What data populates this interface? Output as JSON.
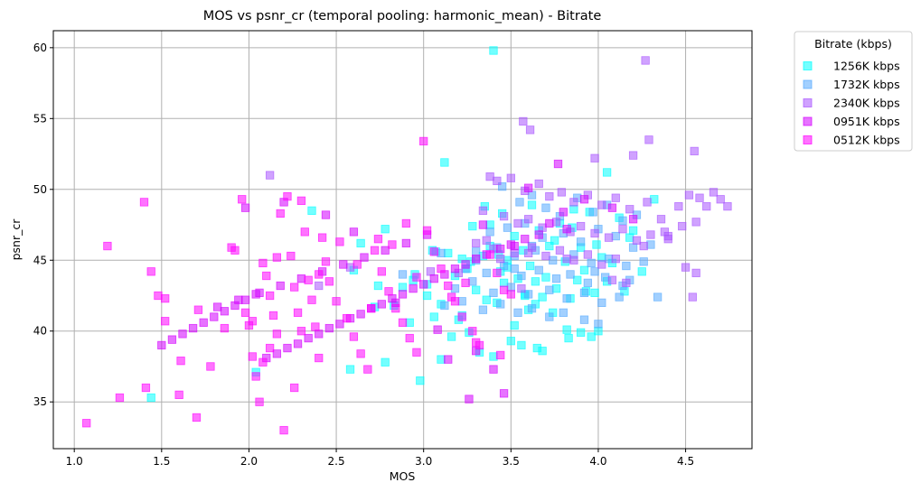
{
  "chart_data": {
    "type": "scatter",
    "title": "MOS vs psnr_cr (temporal pooling: harmonic_mean) - Bitrate",
    "xlabel": "MOS",
    "ylabel": "psnr_cr",
    "xlim": [
      0.88,
      4.88
    ],
    "ylim": [
      31.7,
      61.2
    ],
    "xticks": [
      1.0,
      1.5,
      2.0,
      2.5,
      3.0,
      3.5,
      4.0,
      4.5
    ],
    "xtick_labels": [
      "1.0",
      "1.5",
      "2.0",
      "2.5",
      "3.0",
      "3.5",
      "4.0",
      "4.5"
    ],
    "yticks": [
      35,
      40,
      45,
      50,
      55,
      60
    ],
    "ytick_labels": [
      "35",
      "40",
      "45",
      "50",
      "55",
      "60"
    ],
    "grid": true,
    "marker": "square",
    "legend": {
      "title": "Bitrate (kbps)",
      "placement": "outside-top-right"
    },
    "series": [
      {
        "name": "1256K kbps",
        "color": "#00ffff",
        "x": [
          3.4,
          3.12,
          3.35,
          3.45,
          3.62,
          3.85,
          4.05,
          4.12,
          3.38,
          3.78,
          3.52,
          3.95,
          3.66,
          3.28,
          3.72,
          3.99,
          4.18,
          2.78,
          2.64,
          3.05,
          3.9,
          4.02,
          3.57,
          3.14,
          3.22,
          3.34,
          3.48,
          3.81,
          4.08,
          3.61,
          3.25,
          3.44,
          2.95,
          3.18,
          3.7,
          3.88,
          4.25,
          3.54,
          3.64,
          3.46,
          3.02,
          2.88,
          3.3,
          3.76,
          3.93,
          3.58,
          3.68,
          3.84,
          4.15,
          3.98,
          3.36,
          3.42,
          3.1,
          2.83,
          2.72,
          3.6,
          3.74,
          3.06,
          3.2,
          2.92,
          3.52,
          3.82,
          3.26,
          3.16,
          3.5,
          3.9,
          3.96,
          4.0,
          3.56,
          3.65,
          3.32,
          3.4,
          3.1,
          2.98,
          2.78,
          2.58,
          2.36,
          3.58,
          4.32,
          3.86,
          4.2,
          3.75,
          3.38,
          3.07,
          3.27,
          3.43,
          3.48,
          3.92,
          2.94,
          2.74,
          3.02,
          4.05,
          3.22,
          3.64,
          1.44,
          2.04,
          3.68,
          3.83,
          2.6
        ],
        "y": [
          59.8,
          51.9,
          48.8,
          48.3,
          48.9,
          47.3,
          51.2,
          48.0,
          47.5,
          47.6,
          46.7,
          48.4,
          47.1,
          47.4,
          46.0,
          46.1,
          46.6,
          47.2,
          46.2,
          45.7,
          45.9,
          45.2,
          45.7,
          45.5,
          45.1,
          45.3,
          45.0,
          44.9,
          44.8,
          44.6,
          44.4,
          44.2,
          44.0,
          43.9,
          43.8,
          43.6,
          44.2,
          43.7,
          43.5,
          43.4,
          43.3,
          43.1,
          42.9,
          43.0,
          42.8,
          42.6,
          42.4,
          42.3,
          42.8,
          42.7,
          42.2,
          42.0,
          41.9,
          41.8,
          41.7,
          41.5,
          41.3,
          41.0,
          40.8,
          40.6,
          40.4,
          40.1,
          39.9,
          39.6,
          39.3,
          39.9,
          39.6,
          40.0,
          39.0,
          38.8,
          38.5,
          38.2,
          38.0,
          36.5,
          37.8,
          37.3,
          48.5,
          42.5,
          49.3,
          48.6,
          47.1,
          46.4,
          46.0,
          45.6,
          44.9,
          45.4,
          44.5,
          44.3,
          43.6,
          43.2,
          42.5,
          43.5,
          41.1,
          41.9,
          35.3,
          37.1,
          38.6,
          39.5,
          44.3
        ]
      },
      {
        "name": "1732K kbps",
        "color": "#55aaff",
        "x": [
          3.45,
          3.55,
          3.62,
          3.7,
          3.78,
          3.88,
          3.97,
          4.05,
          4.14,
          4.22,
          3.38,
          3.48,
          3.58,
          3.68,
          3.8,
          3.9,
          4.0,
          4.1,
          4.2,
          4.3,
          3.3,
          3.42,
          3.52,
          3.64,
          3.74,
          3.86,
          3.96,
          4.06,
          4.16,
          4.26,
          3.24,
          3.36,
          3.46,
          3.56,
          3.66,
          3.76,
          3.84,
          3.94,
          4.04,
          4.14,
          3.18,
          3.28,
          3.4,
          3.5,
          3.6,
          3.72,
          3.82,
          3.92,
          4.02,
          4.12,
          3.12,
          3.22,
          3.34,
          3.44,
          3.54,
          3.62,
          3.72,
          3.8,
          3.92,
          4.0,
          4.34,
          4.18,
          3.98,
          3.52,
          2.88,
          3.3,
          3.62,
          3.1
        ],
        "y": [
          50.2,
          49.1,
          49.6,
          48.7,
          48.1,
          49.4,
          48.4,
          48.9,
          47.8,
          48.2,
          47.0,
          47.3,
          47.6,
          46.6,
          46.9,
          46.3,
          47.2,
          46.7,
          45.9,
          46.1,
          45.6,
          45.9,
          45.3,
          45.7,
          45.0,
          45.4,
          44.8,
          45.1,
          44.6,
          44.9,
          44.4,
          44.1,
          44.6,
          43.9,
          44.3,
          43.7,
          44.0,
          43.4,
          43.8,
          43.2,
          43.0,
          43.5,
          42.7,
          43.1,
          42.6,
          42.9,
          42.3,
          42.7,
          42.0,
          42.4,
          41.8,
          42.1,
          41.5,
          41.9,
          41.3,
          41.6,
          41.0,
          41.3,
          40.8,
          40.5,
          42.4,
          43.6,
          44.2,
          44.4,
          44.0,
          45.0,
          46.0,
          45.5
        ]
      },
      {
        "name": "2340K kbps",
        "color": "#aa55ff",
        "x": [
          4.27,
          4.29,
          4.55,
          3.57,
          3.61,
          3.98,
          4.2,
          3.38,
          3.42,
          3.5,
          3.58,
          3.66,
          3.72,
          3.79,
          3.86,
          3.94,
          4.02,
          4.1,
          4.18,
          4.28,
          4.36,
          4.46,
          4.52,
          4.58,
          4.62,
          4.66,
          4.7,
          4.74,
          4.56,
          4.48,
          4.38,
          3.34,
          3.46,
          3.54,
          3.6,
          3.68,
          3.76,
          3.84,
          3.9,
          3.98,
          4.06,
          4.14,
          4.22,
          4.3,
          4.4,
          4.5,
          4.56,
          3.3,
          3.4,
          3.52,
          3.62,
          3.7,
          3.78,
          3.86,
          3.94,
          4.02,
          4.1,
          2.12,
          2.4,
          2.58,
          3.2,
          3.6,
          3.82,
          4.54,
          3.36,
          3.44,
          3.56,
          4.16,
          3.04,
          4.4,
          4.26,
          4.08
        ],
        "y": [
          59.1,
          53.5,
          52.7,
          54.8,
          54.2,
          52.2,
          52.4,
          50.9,
          50.6,
          50.8,
          49.9,
          50.4,
          49.5,
          49.8,
          49.1,
          49.6,
          48.9,
          49.4,
          48.6,
          49.1,
          47.9,
          48.8,
          49.6,
          49.4,
          48.8,
          49.8,
          49.3,
          48.8,
          47.7,
          47.4,
          47.0,
          48.5,
          48.1,
          47.6,
          47.9,
          47.3,
          47.7,
          47.0,
          47.4,
          46.9,
          46.6,
          47.2,
          46.4,
          46.8,
          46.5,
          44.5,
          44.1,
          46.2,
          45.8,
          45.5,
          45.9,
          45.3,
          45.7,
          45.0,
          45.4,
          44.7,
          45.1,
          51.0,
          43.2,
          44.5,
          44.1,
          45.5,
          45.1,
          42.4,
          46.4,
          45.1,
          43.0,
          43.4,
          44.2,
          46.7,
          46.0,
          43.6
        ]
      },
      {
        "name": "0951K kbps",
        "color": "#d400ff",
        "x": [
          3.77,
          3.92,
          4.08,
          4.2,
          3.72,
          3.82,
          3.66,
          3.58,
          3.5,
          3.44,
          3.36,
          3.3,
          3.24,
          3.18,
          3.12,
          3.06,
          3.0,
          2.94,
          2.88,
          2.82,
          2.76,
          2.7,
          2.64,
          2.58,
          2.52,
          2.46,
          2.4,
          2.34,
          2.28,
          2.22,
          2.16,
          2.1,
          2.04,
          1.98,
          1.92,
          1.86,
          1.8,
          1.74,
          1.68,
          1.62,
          1.56,
          1.5,
          3.4,
          3.26,
          3.14,
          3.02,
          2.9,
          2.78,
          2.66,
          2.54,
          2.42,
          2.3,
          2.18,
          2.06,
          1.94,
          1.82,
          3.46,
          3.3,
          3.08,
          2.84,
          2.6,
          2.44,
          2.2,
          1.98,
          3.6,
          3.8,
          3.52,
          3.34
        ],
        "y": [
          51.8,
          49.3,
          48.7,
          47.9,
          47.6,
          47.2,
          46.8,
          46.5,
          46.1,
          45.8,
          45.4,
          45.1,
          44.7,
          44.4,
          44.0,
          43.7,
          43.3,
          43.0,
          42.6,
          42.3,
          41.9,
          41.6,
          41.2,
          40.9,
          40.5,
          40.2,
          39.8,
          39.5,
          39.1,
          38.8,
          38.4,
          38.1,
          42.6,
          42.2,
          41.8,
          41.4,
          41.0,
          40.6,
          40.2,
          39.8,
          39.4,
          39.0,
          37.3,
          35.2,
          38.0,
          46.8,
          46.2,
          45.7,
          45.2,
          44.7,
          44.2,
          43.7,
          43.2,
          42.7,
          42.2,
          41.7,
          35.6,
          38.6,
          40.1,
          42.0,
          47.0,
          48.2,
          49.1,
          48.7,
          50.1,
          48.4,
          46.0,
          47.5
        ]
      },
      {
        "name": "0512K kbps",
        "color": "#ff00ff",
        "x": [
          1.07,
          1.19,
          1.26,
          1.4,
          1.41,
          1.44,
          1.48,
          1.52,
          1.6,
          1.61,
          1.7,
          1.71,
          1.78,
          1.86,
          1.9,
          1.92,
          1.96,
          2.0,
          2.02,
          2.04,
          2.06,
          2.08,
          2.1,
          2.12,
          2.14,
          2.16,
          2.2,
          2.22,
          2.24,
          2.26,
          2.28,
          2.3,
          2.32,
          2.34,
          2.36,
          2.38,
          2.4,
          2.42,
          2.44,
          2.46,
          2.5,
          2.56,
          2.6,
          2.64,
          2.68,
          2.72,
          2.76,
          2.8,
          2.84,
          2.88,
          2.92,
          2.96,
          3.0,
          3.02,
          3.06,
          3.1,
          3.14,
          3.18,
          3.22,
          3.28,
          3.32,
          3.38,
          3.42,
          3.46,
          3.5,
          2.18,
          2.3,
          2.12,
          1.52,
          2.02,
          2.74,
          2.9,
          3.24,
          1.98,
          2.08,
          2.52,
          2.62,
          2.82,
          2.96,
          3.16,
          3.3,
          3.44,
          2.26,
          2.16,
          2.4,
          2.7
        ],
        "y": [
          33.5,
          46.0,
          35.3,
          49.1,
          36.0,
          44.2,
          42.5,
          40.7,
          35.5,
          37.9,
          33.9,
          41.5,
          37.5,
          40.2,
          45.9,
          45.7,
          49.3,
          40.4,
          38.2,
          36.8,
          35.0,
          44.8,
          43.9,
          42.5,
          41.1,
          39.8,
          33.0,
          49.5,
          45.3,
          43.1,
          41.3,
          40.0,
          47.0,
          43.6,
          42.2,
          40.3,
          38.1,
          46.6,
          44.9,
          43.5,
          42.1,
          40.9,
          39.6,
          38.4,
          37.3,
          45.7,
          44.2,
          42.8,
          41.6,
          40.6,
          39.5,
          38.5,
          53.4,
          47.1,
          45.6,
          44.4,
          43.2,
          42.1,
          41.0,
          40.0,
          39.0,
          45.4,
          44.1,
          42.9,
          42.6,
          48.3,
          49.2,
          38.8,
          42.3,
          40.7,
          46.5,
          47.6,
          43.4,
          41.3,
          37.8,
          46.3,
          44.7,
          46.1,
          43.8,
          42.4,
          39.2,
          38.3,
          36.0,
          45.2,
          44.0,
          41.6
        ]
      }
    ]
  }
}
